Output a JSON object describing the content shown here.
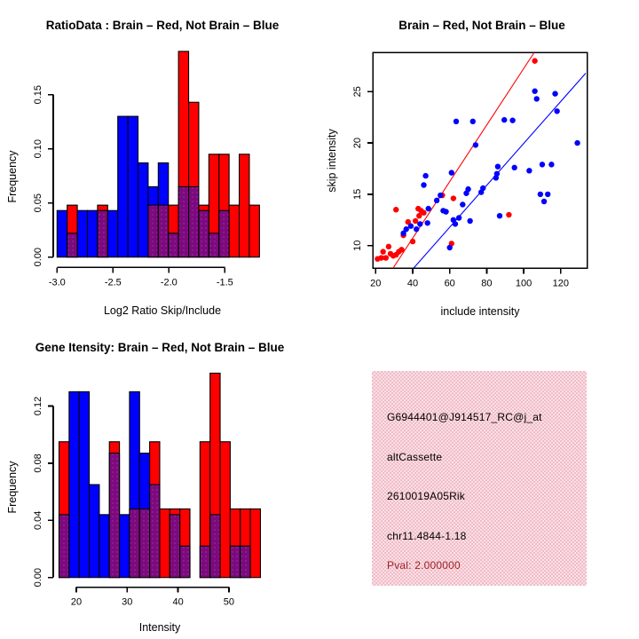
{
  "colors": {
    "brain_red": "#FF0000",
    "not_brain_blue": "#0000FF",
    "overlap_purple": "#7D0A7D",
    "info_box_pink": "#F6CDD6",
    "pval_dark_red": "#9B2226",
    "axis_black": "#000000",
    "background": "#FFFFFF"
  },
  "chart_data": [
    {
      "id": "ratio_histogram",
      "type": "bar",
      "subtype": "overlaid-histogram",
      "title": "RatioData : Brain – Red, Not Brain – Blue",
      "xlabel": "Log2 Ratio Skip/Include",
      "ylabel": "Frequency",
      "bin_start": -3.0,
      "bin_width": 0.0905,
      "xlim": [
        -3.0,
        -1.19
      ],
      "ylim": [
        0,
        0.19
      ],
      "grid": false,
      "legend": "none",
      "x_ticks": [
        -3.0,
        -2.5,
        -2.0,
        -1.5
      ],
      "x_tick_labels": [
        "-3.0",
        "-2.5",
        "-2.0",
        "-1.5"
      ],
      "y_ticks": [
        0,
        0.05,
        0.1,
        0.15
      ],
      "y_tick_labels": [
        "0.00",
        "0.05",
        "0.10",
        "0.15"
      ],
      "series": [
        {
          "name": "Brain",
          "color": "#FF0000",
          "values": [
            0,
            0.048,
            0,
            0,
            0.048,
            0,
            0,
            0,
            0,
            0.048,
            0.048,
            0.048,
            0.19,
            0.143,
            0.048,
            0.095,
            0.095,
            0.048,
            0.095,
            0.048
          ]
        },
        {
          "name": "Not Brain",
          "color": "#0000FF",
          "values": [
            0.043,
            0.022,
            0.043,
            0.043,
            0.043,
            0.043,
            0.13,
            0.13,
            0.087,
            0.065,
            0.087,
            0.022,
            0.065,
            0.065,
            0.043,
            0.022,
            0.043,
            0,
            0,
            0
          ]
        }
      ],
      "overlap_color": "#7D0A7D"
    },
    {
      "id": "intensity_scatter",
      "type": "scatter",
      "title": "Brain – Red, Not Brain – Blue",
      "xlabel": "include intensity",
      "ylabel": "skip intensity",
      "xlim": [
        18.4,
        134.3
      ],
      "ylim": [
        7.8,
        28.8
      ],
      "grid": false,
      "legend": "none",
      "x_ticks": [
        20,
        40,
        60,
        80,
        100,
        120
      ],
      "x_tick_labels": [
        "20",
        "40",
        "60",
        "80",
        "100",
        "120"
      ],
      "y_ticks": [
        10,
        15,
        20,
        25
      ],
      "y_tick_labels": [
        "10",
        "15",
        "20",
        "25"
      ],
      "series": [
        {
          "name": "Brain",
          "color": "#FF0000",
          "points": [
            [
              21,
              8.7
            ],
            [
              23,
              8.8
            ],
            [
              24,
              9.4
            ],
            [
              25.5,
              8.8
            ],
            [
              27,
              9.9
            ],
            [
              28,
              9.2
            ],
            [
              29.5,
              9.0
            ],
            [
              31,
              9.1
            ],
            [
              31,
              13.5
            ],
            [
              32.5,
              9.4
            ],
            [
              34,
              9.6
            ],
            [
              35,
              11.0
            ],
            [
              37.5,
              12.3
            ],
            [
              40,
              10.4
            ],
            [
              41.5,
              12.4
            ],
            [
              43,
              13.6
            ],
            [
              43.5,
              12.9
            ],
            [
              44.5,
              13.4
            ],
            [
              46,
              13.2
            ],
            [
              56,
              14.9
            ],
            [
              61,
              10.2
            ],
            [
              62,
              14.6
            ],
            [
              92,
              13.0
            ],
            [
              106,
              28.0
            ]
          ]
        },
        {
          "name": "Not Brain",
          "color": "#0000FF",
          "points": [
            [
              35,
              11.2
            ],
            [
              36.5,
              11.6
            ],
            [
              39,
              11.9
            ],
            [
              42,
              11.6
            ],
            [
              44,
              12.1
            ],
            [
              46,
              15.9
            ],
            [
              47,
              16.8
            ],
            [
              48,
              12.2
            ],
            [
              48.5,
              13.6
            ],
            [
              53,
              14.4
            ],
            [
              55,
              14.9
            ],
            [
              56.5,
              13.4
            ],
            [
              58,
              13.3
            ],
            [
              60,
              9.8
            ],
            [
              61,
              17.1
            ],
            [
              62,
              12.5
            ],
            [
              63,
              12.1
            ],
            [
              63.5,
              22.1
            ],
            [
              65,
              12.7
            ],
            [
              67,
              14.0
            ],
            [
              69,
              15.1
            ],
            [
              70,
              15.5
            ],
            [
              71,
              12.4
            ],
            [
              72.5,
              22.1
            ],
            [
              74,
              19.8
            ],
            [
              77,
              15.2
            ],
            [
              78,
              15.6
            ],
            [
              85,
              16.6
            ],
            [
              85.5,
              17.0
            ],
            [
              86,
              17.7
            ],
            [
              87,
              12.9
            ],
            [
              89.5,
              22.25
            ],
            [
              94,
              22.2
            ],
            [
              95,
              17.6
            ],
            [
              103,
              17.3
            ],
            [
              106,
              25.05
            ],
            [
              107,
              24.3
            ],
            [
              109,
              15.0
            ],
            [
              110,
              17.9
            ],
            [
              111,
              14.3
            ],
            [
              113,
              15.0
            ],
            [
              115,
              17.9
            ],
            [
              117,
              24.8
            ],
            [
              118,
              23.1
            ],
            [
              129,
              20.0
            ]
          ]
        }
      ],
      "lines": [
        {
          "name": "brain-fit-line",
          "color": "#FF0000",
          "x1": 29.4,
          "y1": 7.8,
          "x2": 105.6,
          "y2": 28.8
        },
        {
          "name": "not-brain-fit-line",
          "color": "#0000FF",
          "x1": 40.5,
          "y1": 7.8,
          "x2": 133.5,
          "y2": 26.8
        }
      ]
    },
    {
      "id": "gene_intensity_histogram",
      "type": "bar",
      "subtype": "overlaid-histogram",
      "title": "Gene Itensity: Brain – Red, Not Brain – Blue",
      "xlabel": "Intensity",
      "ylabel": "Frequency",
      "bin_start": 16.6,
      "bin_width": 1.98,
      "xlim": [
        16.6,
        56.2
      ],
      "ylim": [
        0,
        0.143
      ],
      "grid": false,
      "legend": "none",
      "x_ticks": [
        20,
        30,
        40,
        50
      ],
      "x_tick_labels": [
        "20",
        "30",
        "40",
        "50"
      ],
      "y_ticks": [
        0,
        0.04,
        0.08,
        0.12
      ],
      "y_tick_labels": [
        "0.00",
        "0.04",
        "0.08",
        "0.12"
      ],
      "series": [
        {
          "name": "Brain",
          "color": "#FF0000",
          "values": [
            0.095,
            0,
            0,
            0,
            0,
            0.095,
            0,
            0.048,
            0.048,
            0.095,
            0.048,
            0.048,
            0.048,
            0,
            0.095,
            0.143,
            0.095,
            0.048,
            0.048,
            0.048
          ]
        },
        {
          "name": "Not Brain",
          "color": "#0000FF",
          "values": [
            0.044,
            0.13,
            0.13,
            0.065,
            0.044,
            0.087,
            0.044,
            0.13,
            0.087,
            0.065,
            0,
            0.044,
            0.022,
            0,
            0.022,
            0.044,
            0,
            0.022,
            0.022,
            0
          ]
        }
      ],
      "overlap_color": "#7D0A7D"
    },
    {
      "id": "gene_info_panel",
      "type": "table",
      "background_color": "#F6CDD6",
      "lines": [
        {
          "text": "G6944401@J914517_RC@j_at",
          "color": "#000000"
        },
        {
          "text": "altCassette",
          "color": "#000000"
        },
        {
          "text": "2610019A05Rik",
          "color": "#000000"
        },
        {
          "text": "chr11.4844-1.18",
          "color": "#000000"
        },
        {
          "text": "Pval: 2.000000",
          "color": "#9B2226"
        }
      ]
    }
  ]
}
